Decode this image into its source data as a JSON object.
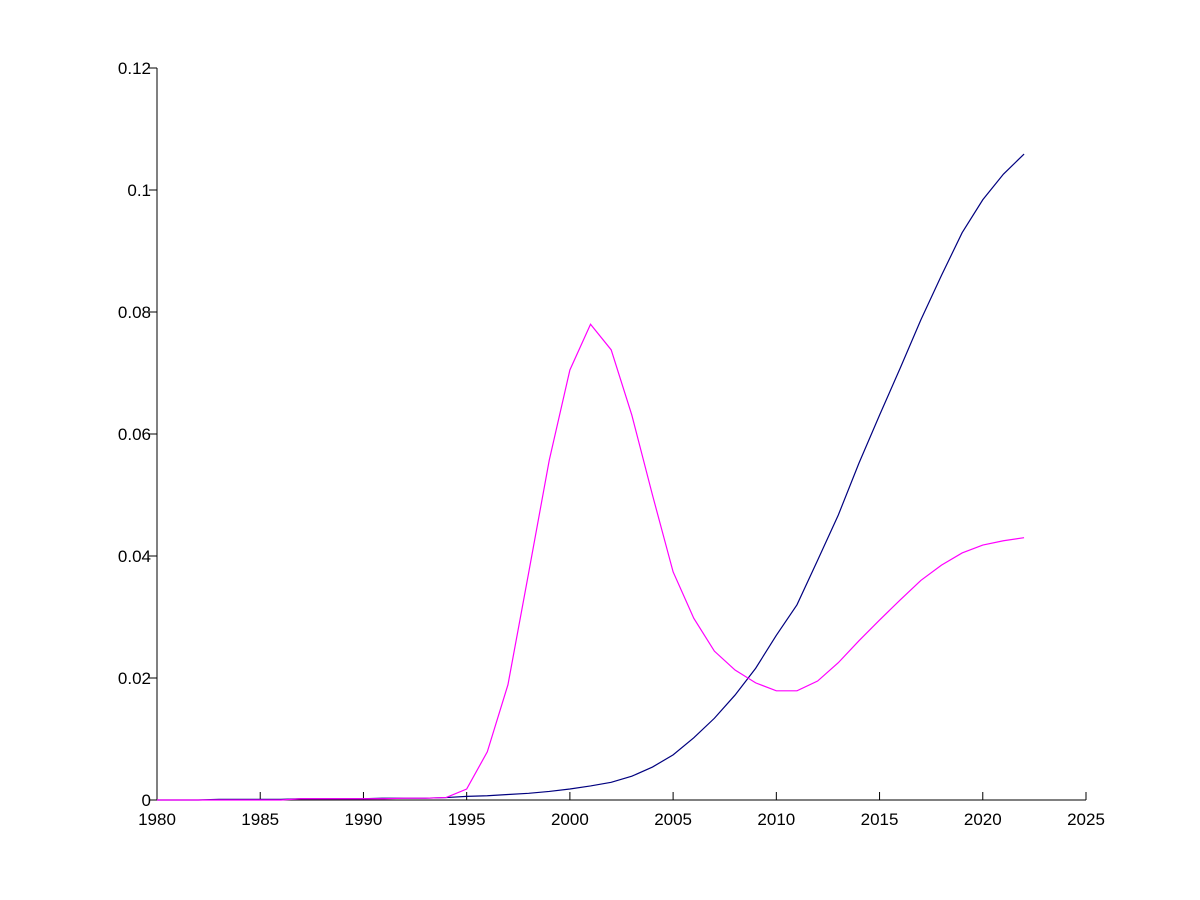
{
  "chart_data": {
    "type": "line",
    "x": [
      1980,
      1981,
      1982,
      1983,
      1984,
      1985,
      1986,
      1987,
      1988,
      1989,
      1990,
      1991,
      1992,
      1993,
      1994,
      1995,
      1996,
      1997,
      1998,
      1999,
      2000,
      2001,
      2002,
      2003,
      2004,
      2005,
      2006,
      2007,
      2008,
      2009,
      2010,
      2011,
      2012,
      2013,
      2014,
      2015,
      2016,
      2017,
      2018,
      2019,
      2020,
      2021,
      2022
    ],
    "series": [
      {
        "color": "#00007f",
        "values": [
          0,
          0,
          0,
          0.0001,
          0.0001,
          0.0001,
          0.0001,
          0.0002,
          0.0002,
          0.0002,
          0.0002,
          0.0003,
          0.0003,
          0.0003,
          0.0004,
          0.0006,
          0.0007,
          0.0009,
          0.0011,
          0.0014,
          0.0018,
          0.0023,
          0.0029,
          0.0039,
          0.0054,
          0.0074,
          0.0102,
          0.0134,
          0.0172,
          0.0216,
          0.027,
          0.032,
          0.0393,
          0.0467,
          0.0552,
          0.0631,
          0.0708,
          0.0787,
          0.086,
          0.093,
          0.0984,
          0.1026,
          0.1059
        ]
      },
      {
        "color": "#ff00ff",
        "values": [
          0,
          0,
          0,
          0,
          0,
          0,
          0,
          0.0002,
          0.0002,
          0.0002,
          0.0002,
          0.0002,
          0.0003,
          0.0003,
          0.0004,
          0.0018,
          0.0079,
          0.0189,
          0.0372,
          0.0557,
          0.0705,
          0.078,
          0.0738,
          0.0631,
          0.05,
          0.0374,
          0.0298,
          0.0244,
          0.0213,
          0.0192,
          0.0179,
          0.0179,
          0.0195,
          0.0225,
          0.0261,
          0.0295,
          0.0328,
          0.036,
          0.0385,
          0.0405,
          0.0418,
          0.0425,
          0.043
        ]
      }
    ],
    "xlim": [
      1980,
      2025
    ],
    "xticks": [
      1980,
      1985,
      1990,
      1995,
      2000,
      2005,
      2010,
      2015,
      2020,
      2025
    ],
    "ylim": [
      0,
      0.12
    ],
    "yticks": [
      0,
      0.02,
      0.04,
      0.06,
      0.08,
      0.1,
      0.12
    ],
    "grid": false
  }
}
